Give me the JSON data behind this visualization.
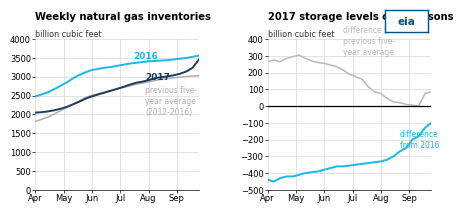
{
  "title1": "Weekly natural gas inventories",
  "title2": "2017 storage levels comparisons",
  "ylabel1": "billion cubic feet",
  "ylabel2": "billion cubic feet",
  "xtick_labels": [
    "Apr",
    "May",
    "Jun",
    "Jul",
    "Aug",
    "Sep"
  ],
  "ylim1": [
    0,
    4000
  ],
  "yticks1": [
    0,
    500,
    1000,
    1500,
    2000,
    2500,
    3000,
    3500,
    4000
  ],
  "ylim2": [
    -500,
    400
  ],
  "yticks2": [
    -500,
    -400,
    -300,
    -200,
    -100,
    0,
    100,
    200,
    300,
    400
  ],
  "color_2016": "#1ab7ea",
  "color_2017": "#1e3a5f",
  "color_avg": "#b0b0b0",
  "color_diff_avg": "#b8b8b8",
  "color_diff_2016": "#1ab7ea",
  "n_points": 27,
  "inv_2016": [
    2480,
    2530,
    2590,
    2670,
    2760,
    2850,
    2960,
    3050,
    3120,
    3180,
    3210,
    3240,
    3260,
    3290,
    3320,
    3350,
    3370,
    3390,
    3410,
    3420,
    3430,
    3440,
    3460,
    3480,
    3500,
    3530,
    3560
  ],
  "inv_2017": [
    2050,
    2060,
    2080,
    2110,
    2150,
    2200,
    2270,
    2340,
    2420,
    2480,
    2530,
    2580,
    2630,
    2680,
    2730,
    2790,
    2840,
    2870,
    2910,
    2960,
    2990,
    3010,
    3040,
    3080,
    3140,
    3240,
    3460
  ],
  "inv_avg": [
    1820,
    1870,
    1930,
    2010,
    2100,
    2190,
    2270,
    2360,
    2450,
    2510,
    2550,
    2590,
    2630,
    2680,
    2720,
    2760,
    2800,
    2830,
    2870,
    2900,
    2930,
    2950,
    2970,
    2990,
    3010,
    3020,
    3030
  ],
  "diff_avg": [
    265,
    275,
    265,
    285,
    295,
    305,
    285,
    270,
    260,
    255,
    245,
    235,
    215,
    190,
    175,
    160,
    115,
    85,
    75,
    45,
    25,
    20,
    10,
    5,
    0,
    75,
    85
  ],
  "diff_2016": [
    -440,
    -450,
    -430,
    -420,
    -420,
    -410,
    -400,
    -395,
    -390,
    -380,
    -370,
    -360,
    -360,
    -355,
    -350,
    -345,
    -340,
    -335,
    -330,
    -320,
    -300,
    -270,
    -250,
    -200,
    -180,
    -130,
    -100
  ],
  "background_color": "#ffffff",
  "grid_color": "#d8d8d8",
  "title_fontsize": 7.2,
  "label_fontsize": 5.8,
  "tick_fontsize": 6.0,
  "annotation_fontsize": 6.5,
  "eia_logo_color": "#005288"
}
